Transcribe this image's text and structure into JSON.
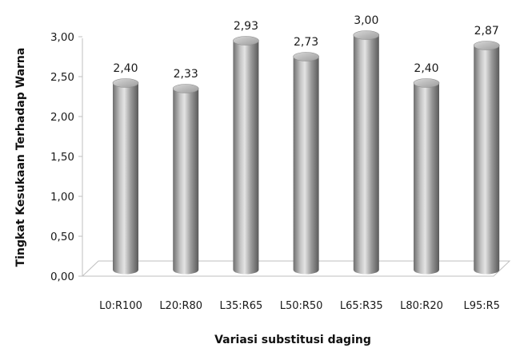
{
  "chart_data": {
    "type": "bar",
    "style": "3d-cylinder",
    "title": "",
    "xlabel": "Variasi substitusi daging",
    "ylabel": "Tingkat Kesukaan Terhadap Warna",
    "categories": [
      "L0:R100",
      "L20:R80",
      "L35:R65",
      "L50:R50",
      "L65:R35",
      "L80:R20",
      "L95:R5"
    ],
    "values": [
      2.4,
      2.33,
      2.93,
      2.73,
      3.0,
      2.4,
      2.87
    ],
    "data_labels": [
      "2,40",
      "2,33",
      "2,93",
      "2,73",
      "3,00",
      "2,40",
      "2,87"
    ],
    "ylim": [
      0,
      3
    ],
    "y_ticks": [
      0,
      0.5,
      1,
      1.5,
      2,
      2.5,
      3
    ],
    "y_tick_labels": [
      "0,00",
      "0,50",
      "1,00",
      "1,50",
      "2,00",
      "2,50",
      "3,00"
    ],
    "grid": false,
    "legend": "none",
    "bar_color": "#a6a6a6"
  }
}
